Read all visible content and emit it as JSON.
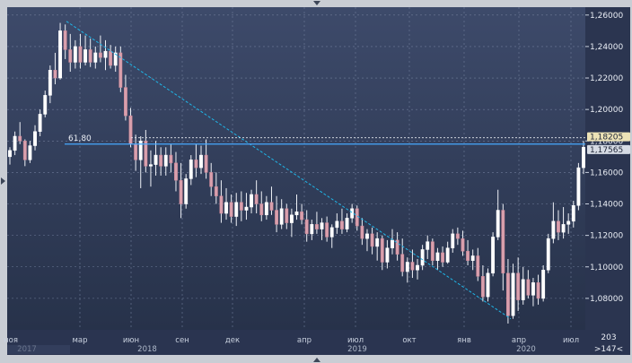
{
  "chart_data": {
    "type": "candlestick",
    "title": "",
    "ylim": [
      1.06,
      1.265
    ],
    "y_ticks": [
      "1,26000",
      "1,24000",
      "1,22000",
      "1,20000",
      "1,18000",
      "1,16000",
      "1,14000",
      "1,12000",
      "1,10000",
      "1,08000"
    ],
    "x_month_labels": [
      "ноя",
      "мар",
      "июн",
      "сен",
      "дек",
      "апр",
      "июл",
      "окт",
      "янв",
      "апр",
      "июл"
    ],
    "x_year_labels": [
      "2017",
      "2018",
      "2019",
      "2020"
    ],
    "fib_label": "61,80",
    "price_labels": [
      "1,18205",
      "1,17565"
    ],
    "corner_labels": [
      "203",
      ">147<"
    ],
    "colors": {
      "background": "#2f3a55",
      "up_candle": "#ffffff",
      "down_candle": "#d9a0ad",
      "wick": "#eef1f7",
      "trendline": "#1fb6e8",
      "fib_line": "#46a8ff",
      "price_line": "#e4e7ee"
    },
    "candles_weekly": [
      [
        1.17,
        1.176,
        1.165,
        1.174
      ],
      [
        1.174,
        1.186,
        1.171,
        1.183
      ],
      [
        1.183,
        1.192,
        1.178,
        1.18
      ],
      [
        1.18,
        1.181,
        1.164,
        1.168
      ],
      [
        1.168,
        1.18,
        1.166,
        1.177
      ],
      [
        1.177,
        1.19,
        1.174,
        1.186
      ],
      [
        1.186,
        1.2,
        1.183,
        1.197
      ],
      [
        1.197,
        1.212,
        1.195,
        1.209
      ],
      [
        1.209,
        1.228,
        1.204,
        1.225
      ],
      [
        1.225,
        1.236,
        1.216,
        1.22
      ],
      [
        1.22,
        1.255,
        1.219,
        1.25
      ],
      [
        1.25,
        1.254,
        1.232,
        1.238
      ],
      [
        1.238,
        1.248,
        1.224,
        1.23
      ],
      [
        1.23,
        1.244,
        1.226,
        1.24
      ],
      [
        1.24,
        1.248,
        1.226,
        1.23
      ],
      [
        1.23,
        1.247,
        1.228,
        1.238
      ],
      [
        1.238,
        1.245,
        1.227,
        1.23
      ],
      [
        1.23,
        1.24,
        1.226,
        1.236
      ],
      [
        1.236,
        1.247,
        1.23,
        1.233
      ],
      [
        1.233,
        1.244,
        1.225,
        1.237
      ],
      [
        1.237,
        1.241,
        1.226,
        1.228
      ],
      [
        1.228,
        1.24,
        1.224,
        1.236
      ],
      [
        1.236,
        1.24,
        1.211,
        1.214
      ],
      [
        1.214,
        1.222,
        1.193,
        1.196
      ],
      [
        1.196,
        1.201,
        1.176,
        1.178
      ],
      [
        1.178,
        1.184,
        1.161,
        1.168
      ],
      [
        1.168,
        1.183,
        1.15,
        1.18
      ],
      [
        1.18,
        1.187,
        1.16,
        1.164
      ],
      [
        1.164,
        1.174,
        1.151,
        1.165
      ],
      [
        1.165,
        1.18,
        1.158,
        1.171
      ],
      [
        1.171,
        1.176,
        1.158,
        1.164
      ],
      [
        1.164,
        1.176,
        1.158,
        1.171
      ],
      [
        1.171,
        1.178,
        1.16,
        1.166
      ],
      [
        1.166,
        1.173,
        1.148,
        1.155
      ],
      [
        1.155,
        1.166,
        1.131,
        1.14
      ],
      [
        1.14,
        1.159,
        1.137,
        1.156
      ],
      [
        1.156,
        1.171,
        1.152,
        1.168
      ],
      [
        1.168,
        1.178,
        1.157,
        1.163
      ],
      [
        1.163,
        1.177,
        1.159,
        1.171
      ],
      [
        1.171,
        1.181,
        1.156,
        1.16
      ],
      [
        1.16,
        1.166,
        1.145,
        1.151
      ],
      [
        1.151,
        1.16,
        1.14,
        1.145
      ],
      [
        1.145,
        1.155,
        1.128,
        1.134
      ],
      [
        1.134,
        1.15,
        1.13,
        1.141
      ],
      [
        1.141,
        1.146,
        1.128,
        1.132
      ],
      [
        1.132,
        1.147,
        1.126,
        1.141
      ],
      [
        1.141,
        1.148,
        1.129,
        1.136
      ],
      [
        1.136,
        1.147,
        1.13,
        1.138
      ],
      [
        1.138,
        1.149,
        1.134,
        1.146
      ],
      [
        1.146,
        1.155,
        1.134,
        1.14
      ],
      [
        1.14,
        1.148,
        1.129,
        1.133
      ],
      [
        1.133,
        1.145,
        1.13,
        1.141
      ],
      [
        1.141,
        1.151,
        1.133,
        1.136
      ],
      [
        1.136,
        1.145,
        1.122,
        1.127
      ],
      [
        1.127,
        1.143,
        1.124,
        1.137
      ],
      [
        1.137,
        1.14,
        1.124,
        1.128
      ],
      [
        1.128,
        1.137,
        1.119,
        1.133
      ],
      [
        1.133,
        1.146,
        1.13,
        1.135
      ],
      [
        1.135,
        1.14,
        1.127,
        1.13
      ],
      [
        1.13,
        1.136,
        1.116,
        1.121
      ],
      [
        1.121,
        1.13,
        1.117,
        1.127
      ],
      [
        1.127,
        1.135,
        1.121,
        1.124
      ],
      [
        1.124,
        1.131,
        1.117,
        1.128
      ],
      [
        1.128,
        1.132,
        1.116,
        1.119
      ],
      [
        1.119,
        1.127,
        1.112,
        1.125
      ],
      [
        1.125,
        1.134,
        1.121,
        1.129
      ],
      [
        1.129,
        1.137,
        1.121,
        1.124
      ],
      [
        1.124,
        1.134,
        1.122,
        1.131
      ],
      [
        1.131,
        1.14,
        1.128,
        1.137
      ],
      [
        1.137,
        1.139,
        1.123,
        1.126
      ],
      [
        1.126,
        1.131,
        1.114,
        1.118
      ],
      [
        1.118,
        1.124,
        1.11,
        1.121
      ],
      [
        1.121,
        1.125,
        1.108,
        1.113
      ],
      [
        1.113,
        1.122,
        1.104,
        1.118
      ],
      [
        1.118,
        1.12,
        1.098,
        1.103
      ],
      [
        1.103,
        1.117,
        1.099,
        1.112
      ],
      [
        1.112,
        1.124,
        1.108,
        1.117
      ],
      [
        1.117,
        1.122,
        1.104,
        1.108
      ],
      [
        1.108,
        1.118,
        1.094,
        1.097
      ],
      [
        1.097,
        1.106,
        1.09,
        1.103
      ],
      [
        1.103,
        1.111,
        1.093,
        1.098
      ],
      [
        1.098,
        1.105,
        1.092,
        1.101
      ],
      [
        1.101,
        1.114,
        1.098,
        1.111
      ],
      [
        1.111,
        1.12,
        1.105,
        1.116
      ],
      [
        1.116,
        1.118,
        1.101,
        1.104
      ],
      [
        1.104,
        1.112,
        1.098,
        1.109
      ],
      [
        1.109,
        1.113,
        1.1,
        1.103
      ],
      [
        1.103,
        1.116,
        1.102,
        1.112
      ],
      [
        1.112,
        1.124,
        1.109,
        1.121
      ],
      [
        1.121,
        1.125,
        1.114,
        1.118
      ],
      [
        1.118,
        1.123,
        1.107,
        1.11
      ],
      [
        1.11,
        1.117,
        1.101,
        1.104
      ],
      [
        1.104,
        1.111,
        1.098,
        1.107
      ],
      [
        1.107,
        1.112,
        1.091,
        1.094
      ],
      [
        1.094,
        1.101,
        1.078,
        1.081
      ],
      [
        1.081,
        1.099,
        1.078,
        1.096
      ],
      [
        1.096,
        1.122,
        1.094,
        1.119
      ],
      [
        1.119,
        1.149,
        1.117,
        1.136
      ],
      [
        1.136,
        1.14,
        1.085,
        1.096
      ],
      [
        1.096,
        1.105,
        1.064,
        1.069
      ],
      [
        1.069,
        1.102,
        1.067,
        1.096
      ],
      [
        1.096,
        1.106,
        1.072,
        1.079
      ],
      [
        1.079,
        1.1,
        1.076,
        1.092
      ],
      [
        1.092,
        1.098,
        1.08,
        1.082
      ],
      [
        1.082,
        1.093,
        1.075,
        1.09
      ],
      [
        1.09,
        1.095,
        1.076,
        1.08
      ],
      [
        1.08,
        1.101,
        1.078,
        1.098
      ],
      [
        1.098,
        1.121,
        1.096,
        1.118
      ],
      [
        1.118,
        1.141,
        1.115,
        1.129
      ],
      [
        1.129,
        1.136,
        1.117,
        1.122
      ],
      [
        1.122,
        1.138,
        1.118,
        1.127
      ],
      [
        1.127,
        1.134,
        1.121,
        1.129
      ],
      [
        1.129,
        1.142,
        1.125,
        1.139
      ],
      [
        1.139,
        1.166,
        1.136,
        1.163
      ],
      [
        1.163,
        1.18,
        1.159,
        1.176
      ]
    ]
  }
}
